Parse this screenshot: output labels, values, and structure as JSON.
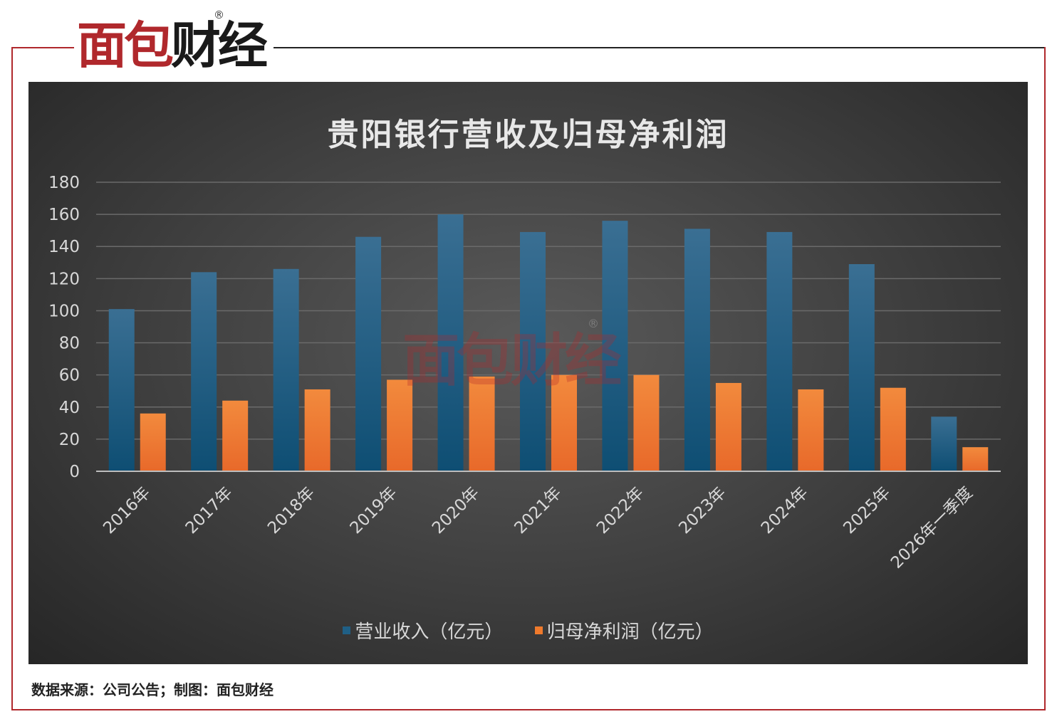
{
  "brand": {
    "logo_chars": [
      "面",
      "包",
      "财",
      "经"
    ],
    "registered_mark": "®"
  },
  "colors": {
    "frame": "#b0282c",
    "revenue_series": "#1f5f85",
    "profit_series": "#ef7a2c",
    "panel_background": "#3e3e3e"
  },
  "watermark": {
    "text": "面包财经",
    "registered_mark": "®"
  },
  "footer": {
    "text": "数据来源：公司公告；制图：面包财经"
  },
  "chart_data": {
    "type": "bar",
    "title": "贵阳银行营收及归母净利润",
    "categories": [
      "2016年",
      "2017年",
      "2018年",
      "2019年",
      "2020年",
      "2021年",
      "2022年",
      "2023年",
      "2024年",
      "2025年",
      "2026年一季度"
    ],
    "series": [
      {
        "name": "营业收入（亿元）",
        "color": "#1f5f85",
        "values": [
          101,
          124,
          126,
          146,
          160,
          149,
          156,
          151,
          149,
          129,
          34
        ]
      },
      {
        "name": "归母净利润（亿元）",
        "color": "#ef7a2c",
        "values": [
          36,
          44,
          51,
          57,
          59,
          60,
          60,
          55,
          51,
          52,
          15
        ]
      }
    ],
    "ylim": [
      0,
      180
    ],
    "yticks": [
      0,
      20,
      40,
      60,
      80,
      100,
      120,
      140,
      160,
      180
    ],
    "grid": true,
    "legend_position": "bottom"
  }
}
